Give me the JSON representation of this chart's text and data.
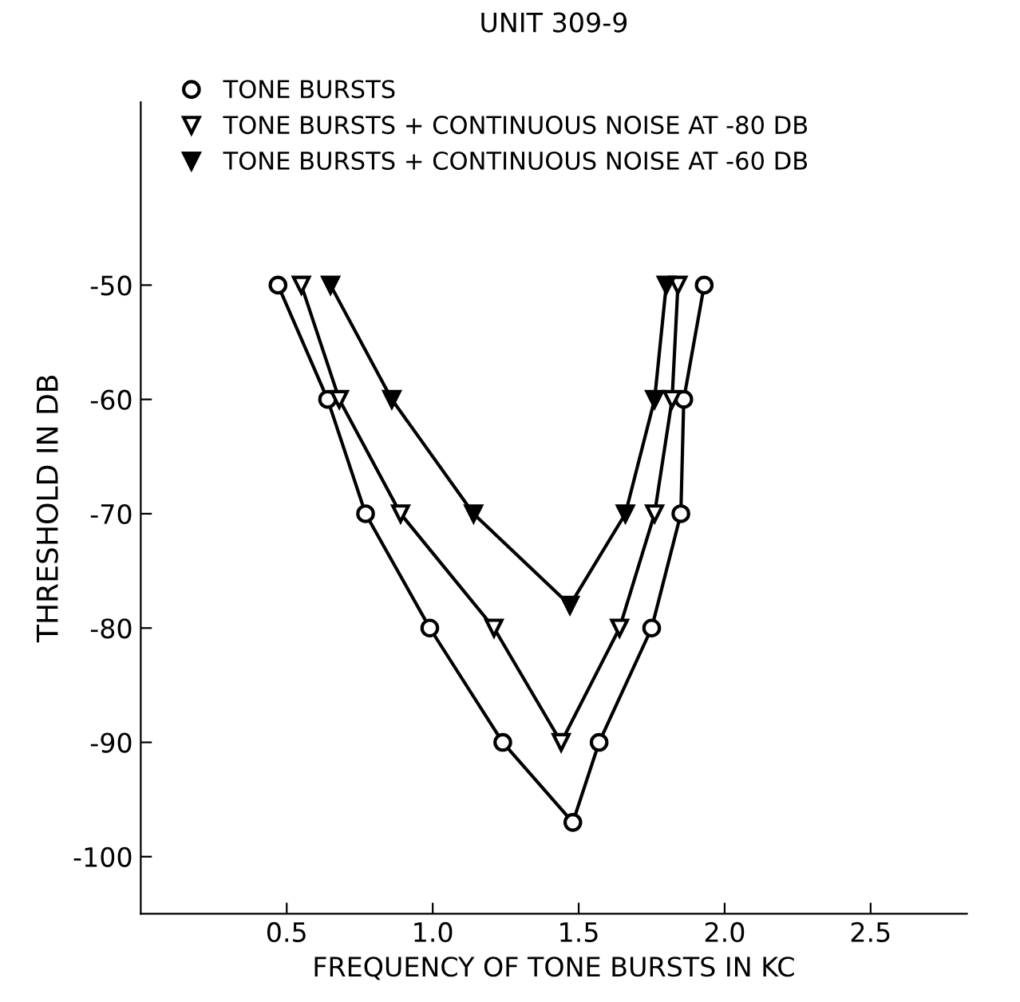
{
  "chart_data": {
    "type": "line",
    "title": "UNIT 309-9",
    "xlabel": "FREQUENCY OF TONE BURSTS IN KC",
    "ylabel": "THRESHOLD IN DB",
    "xlim": [
      0,
      2.83
    ],
    "xticks": [
      {
        "value": 0.5,
        "label": "0.5"
      },
      {
        "value": 1.0,
        "label": "1.0"
      },
      {
        "value": 1.5,
        "label": "1.5"
      },
      {
        "value": 2.0,
        "label": "2.0"
      },
      {
        "value": 2.5,
        "label": "2.5"
      }
    ],
    "ylim": [
      -105,
      -34
    ],
    "yticks": [
      -50,
      -60,
      -70,
      -80,
      -90,
      -100
    ],
    "grid": false,
    "legend": "top left",
    "line_style": "solid",
    "series": [
      {
        "name": "TONE BURSTS",
        "color": "#000000",
        "marker": "circle",
        "x": [
          0.47,
          0.64,
          0.77,
          0.99,
          1.24,
          1.48,
          1.57,
          1.75,
          1.85,
          1.86,
          1.93
        ],
        "values": [
          -50,
          -60,
          -70,
          -80,
          -90,
          -97,
          -90,
          -80,
          -70,
          -60,
          -50
        ]
      },
      {
        "name": "TONE BURSTS + CONTINUOUS NOISE AT -80 DB",
        "color": "#000000",
        "marker": "triangle",
        "x": [
          0.55,
          0.68,
          0.89,
          1.21,
          1.44,
          1.64,
          1.76,
          1.82,
          1.84
        ],
        "values": [
          -50,
          -60,
          -70,
          -80,
          -90,
          -80,
          -70,
          -60,
          -50
        ]
      },
      {
        "name": "TONE BURSTS + CONTINUOUS NOISE AT -60 DB",
        "color": "#000000",
        "marker": "triangle",
        "x": [
          0.65,
          0.86,
          1.14,
          1.47,
          1.66,
          1.76,
          1.8
        ],
        "values": [
          -50,
          -60,
          -70,
          -78,
          -70,
          -60,
          -50
        ]
      }
    ]
  }
}
